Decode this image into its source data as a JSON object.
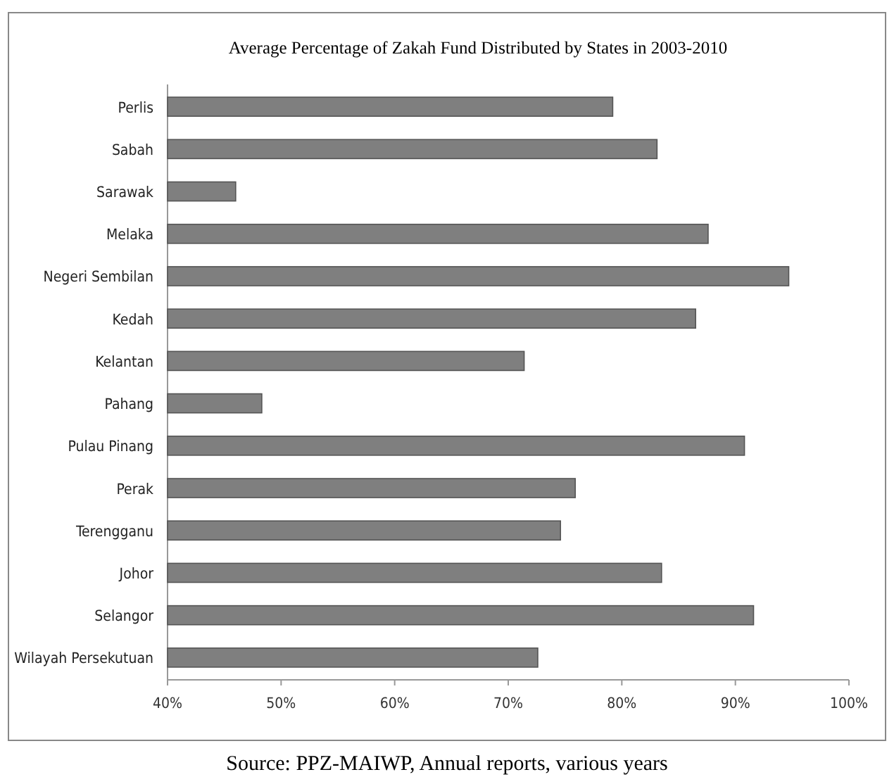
{
  "chart_data": {
    "type": "bar",
    "orientation": "horizontal",
    "title": "Average Percentage of Zakah Fund Distributed by States in 2003-2010",
    "categories": [
      "Perlis",
      "Sabah",
      "Sarawak",
      "Melaka",
      "Negeri Sembilan",
      "Kedah",
      "Kelantan",
      "Pahang",
      "Pulau Pinang",
      "Perak",
      "Terengganu",
      "Johor",
      "Selangor",
      "Wilayah Persekutuan"
    ],
    "values": [
      79.2,
      83.1,
      46,
      87.6,
      94.7,
      86.5,
      71.4,
      48.3,
      90.8,
      75.9,
      74.6,
      83.5,
      91.6,
      72.6
    ],
    "color": "#7f7f7f",
    "xlim": [
      40,
      100
    ],
    "xticks": [
      {
        "value": 40,
        "label": "40%"
      },
      {
        "value": 50,
        "label": "50%"
      },
      {
        "value": 60,
        "label": "60%"
      },
      {
        "value": 70,
        "label": "70%"
      },
      {
        "value": 80,
        "label": "80%"
      },
      {
        "value": 90,
        "label": "90%"
      },
      {
        "value": 100,
        "label": "100%"
      }
    ],
    "annotations": [
      "Source: PPZ-MAIWP, Annual reports, various years"
    ]
  }
}
